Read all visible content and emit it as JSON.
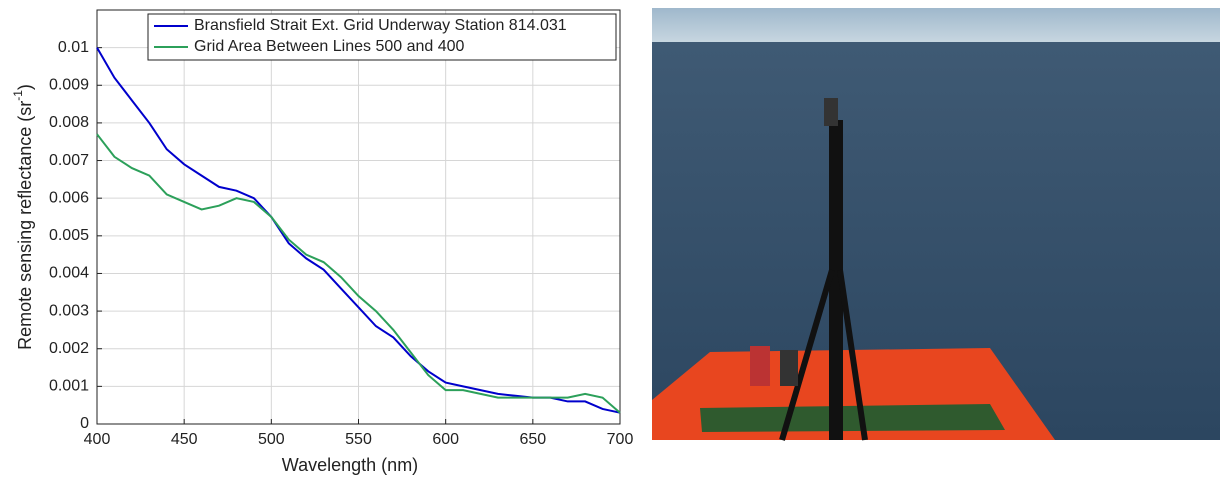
{
  "chart_data": {
    "type": "line",
    "x_label": "Wavelength (nm)",
    "y_label": {
      "text": "Remote sensing reflectance (sr",
      "superscript": "-1",
      "suffix": ")"
    },
    "x": [
      400,
      410,
      420,
      430,
      440,
      450,
      460,
      470,
      480,
      490,
      500,
      510,
      520,
      530,
      540,
      550,
      560,
      570,
      580,
      590,
      600,
      610,
      620,
      630,
      640,
      650,
      660,
      670,
      680,
      690,
      700
    ],
    "series": [
      {
        "name": "Bransfield Strait Ext. Grid Underway Station 814.031",
        "color": "#0000cc",
        "values": [
          0.01,
          0.0092,
          0.0086,
          0.008,
          0.0073,
          0.0069,
          0.0066,
          0.0063,
          0.0062,
          0.006,
          0.0055,
          0.0048,
          0.0044,
          0.0041,
          0.0036,
          0.0031,
          0.0026,
          0.0023,
          0.0018,
          0.0014,
          0.0011,
          0.001,
          0.0009,
          0.0008,
          0.00075,
          0.0007,
          0.0007,
          0.0006,
          0.0006,
          0.0004,
          0.0003
        ]
      },
      {
        "name": "Grid Area Between Lines 500 and 400",
        "color": "#2ca05a",
        "values": [
          0.0077,
          0.0071,
          0.0068,
          0.0066,
          0.0061,
          0.0059,
          0.0057,
          0.0058,
          0.006,
          0.0059,
          0.0055,
          0.0049,
          0.0045,
          0.0043,
          0.0039,
          0.0034,
          0.003,
          0.0025,
          0.0019,
          0.0013,
          0.0009,
          0.0009,
          0.0008,
          0.0007,
          0.0007,
          0.0007,
          0.0007,
          0.0007,
          0.0008,
          0.0007,
          0.0003
        ]
      }
    ],
    "xlim": [
      400,
      700
    ],
    "xticks": [
      400,
      450,
      500,
      550,
      600,
      650,
      700
    ],
    "ylim": [
      0,
      0.011
    ],
    "yticks": [
      0,
      0.001,
      0.002,
      0.003,
      0.004,
      0.005,
      0.006,
      0.007,
      0.008,
      0.009,
      0.01
    ],
    "grid": true,
    "legend": "top-right"
  }
}
